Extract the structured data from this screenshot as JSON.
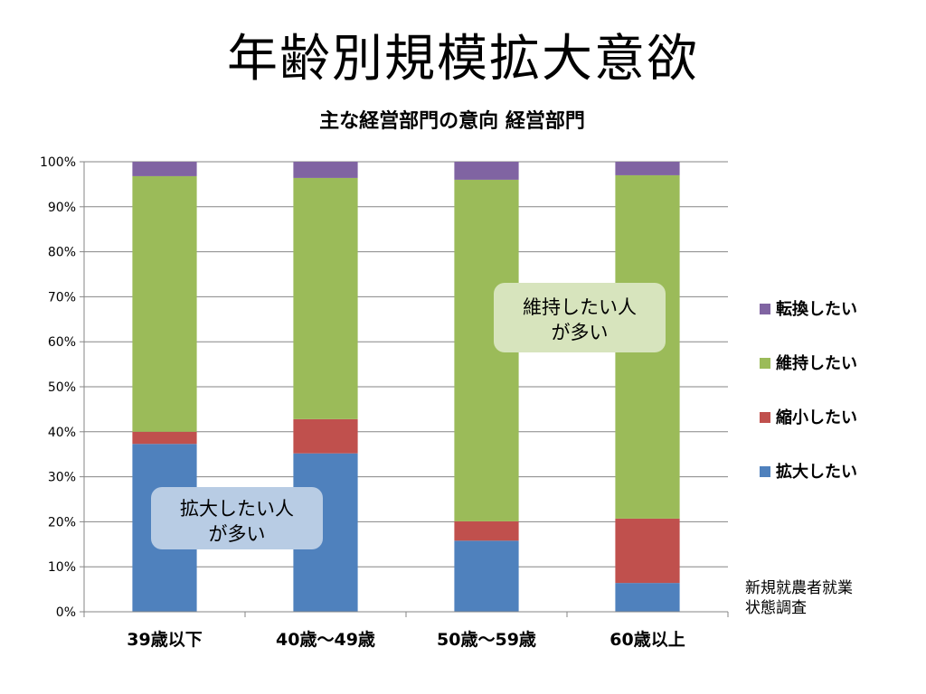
{
  "slide": {
    "title": "年齢別規模拡大意欲",
    "source_note_line1": "新規就農者就業",
    "source_note_line2": "状態調査"
  },
  "callouts": {
    "expand_line1": "拡大したい人",
    "expand_line2": "が多い",
    "maintain_line1": "維持したい人",
    "maintain_line2": "が多い"
  },
  "chart_data": {
    "type": "bar",
    "stacked": true,
    "title": "主な経営部門の意向 経営部門",
    "categories": [
      "39歳以下",
      "40歳～49歳",
      "50歳～59歳",
      "60歳以上"
    ],
    "ylim": [
      0,
      100
    ],
    "yticks": [
      "0%",
      "10%",
      "20%",
      "30%",
      "40%",
      "50%",
      "60%",
      "70%",
      "80%",
      "90%",
      "100%"
    ],
    "grid": true,
    "legend_position": "right",
    "series": [
      {
        "name": "拡大したい",
        "color": "#4f81bd",
        "values": [
          37.3,
          35.2,
          15.8,
          6.4
        ]
      },
      {
        "name": "縮小したい",
        "color": "#c0504d",
        "values": [
          2.7,
          7.6,
          4.3,
          14.3
        ]
      },
      {
        "name": "維持したい",
        "color": "#9bbb59",
        "values": [
          56.8,
          53.6,
          75.9,
          76.3
        ]
      },
      {
        "name": "転換したい",
        "color": "#8064a2",
        "values": [
          3.2,
          3.6,
          4.0,
          3.0
        ]
      }
    ]
  }
}
